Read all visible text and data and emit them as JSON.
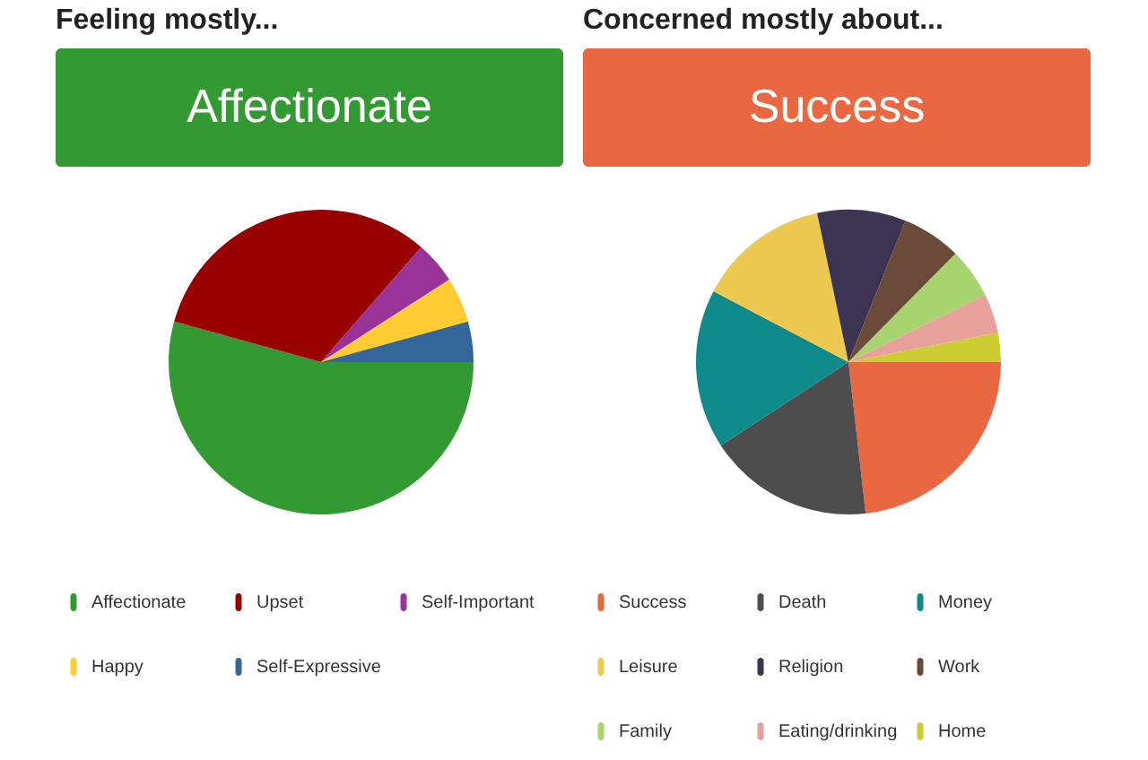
{
  "chart_data": [
    {
      "type": "pie",
      "title": "Feeling mostly...",
      "subtitle": "Affectionate",
      "categories": [
        "Affectionate",
        "Upset",
        "Self-Important",
        "Happy",
        "Self-Expressive"
      ],
      "values": [
        54.3,
        32.1,
        4.5,
        4.8,
        4.3
      ],
      "colors": [
        "#339933",
        "#990000",
        "#993399",
        "#ffcc33",
        "#336699"
      ],
      "legend": "bottom"
    },
    {
      "type": "pie",
      "title": "Concerned mostly about...",
      "subtitle": "Success",
      "categories": [
        "Success",
        "Death",
        "Money",
        "Leisure",
        "Religion",
        "Work",
        "Family",
        "Eating/drinking",
        "Home"
      ],
      "values": [
        23.2,
        17.6,
        16.9,
        14.0,
        9.4,
        6.3,
        5.3,
        4.2,
        3.1
      ],
      "colors": [
        "#e96841",
        "#4d4d4d",
        "#0f8a8a",
        "#edc951",
        "#3d3352",
        "#6b4a3a",
        "#a8d46f",
        "#e8a09a",
        "#cccc33"
      ],
      "legend": "bottom"
    }
  ]
}
